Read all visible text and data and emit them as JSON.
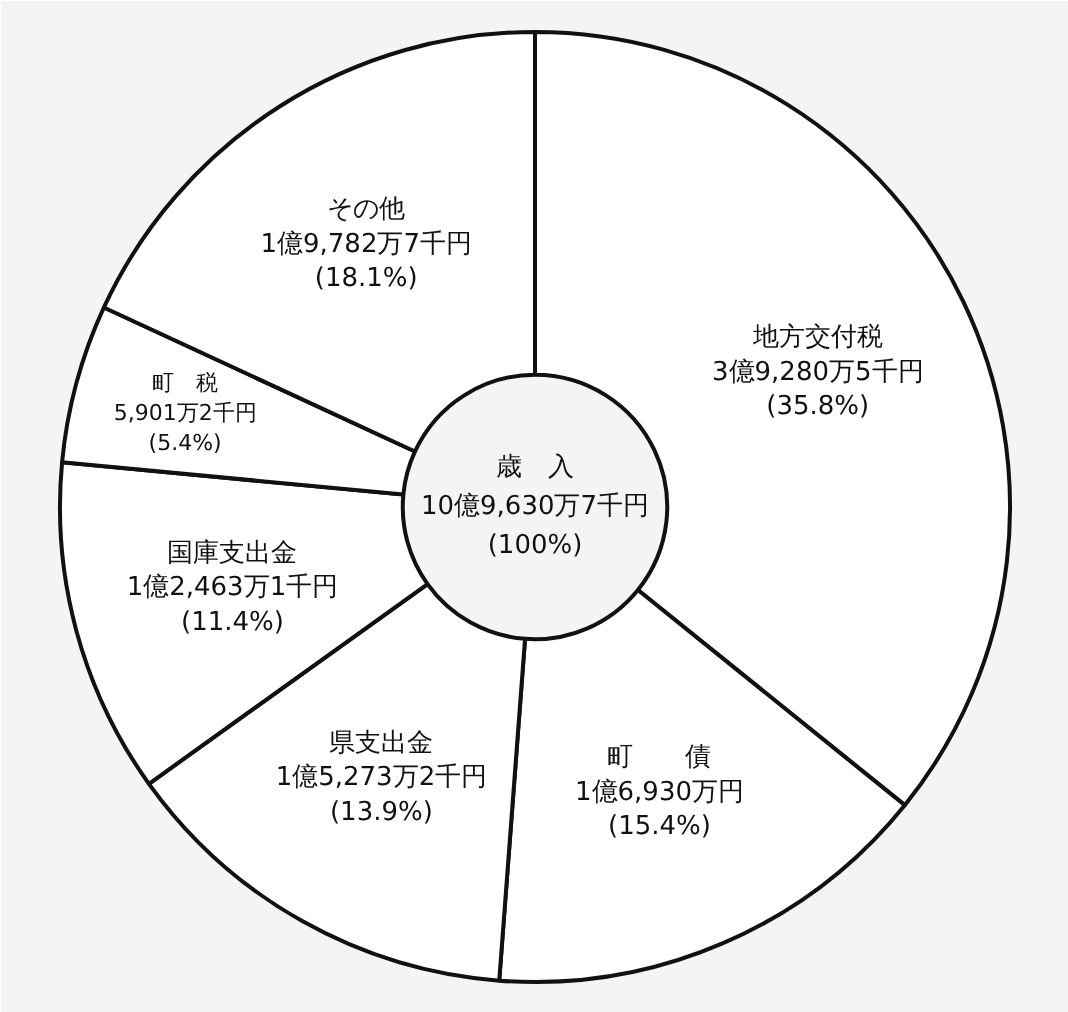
{
  "chart_data": {
    "type": "donut",
    "title": "歳　入",
    "categories": [
      "地方交付税",
      "町　　債",
      "県支出金",
      "国庫支出金",
      "町　税",
      "その他"
    ],
    "values": [
      35.8,
      15.4,
      13.9,
      11.4,
      5.4,
      18.1
    ],
    "value_labels": [
      "3億9,280万5千円\n(35.8%)",
      "1億6,930万円\n(15.4%)",
      "1億5,273万2千円\n(13.9%)",
      "1億2,463万1千円\n(11.4%)",
      "5,901万2千円\n(5.4%)",
      "1億9,782万7千円\n(18.1%)"
    ],
    "colors": [
      "#ffffff",
      "#ffffff",
      "#ffffff",
      "#ffffff",
      "#ffffff",
      "#ffffff"
    ],
    "annotations": [
      "10億9,630万7千円",
      "(100%)"
    ]
  }
}
